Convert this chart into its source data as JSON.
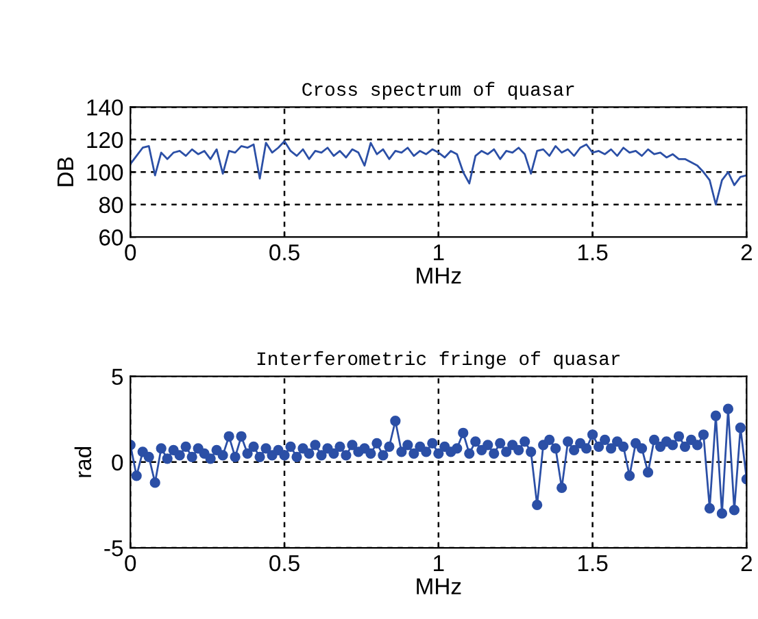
{
  "chart_data": [
    {
      "type": "line",
      "title": "Cross spectrum of quasar",
      "xlabel": "MHz",
      "ylabel": "DB",
      "xlim": [
        0,
        2
      ],
      "ylim": [
        60,
        140
      ],
      "xticks": [
        0,
        0.5,
        1,
        1.5,
        2
      ],
      "yticks": [
        60,
        80,
        100,
        120,
        140
      ],
      "grid": true,
      "marker": "none",
      "series": [
        {
          "color": "#2b4fa6",
          "x": [
            0,
            0.02,
            0.04,
            0.06,
            0.08,
            0.1,
            0.12,
            0.14,
            0.16,
            0.18,
            0.2,
            0.22,
            0.24,
            0.26,
            0.28,
            0.3,
            0.32,
            0.34,
            0.36,
            0.38,
            0.4,
            0.42,
            0.44,
            0.46,
            0.48,
            0.5,
            0.52,
            0.54,
            0.56,
            0.58,
            0.6,
            0.62,
            0.64,
            0.66,
            0.68,
            0.7,
            0.72,
            0.74,
            0.76,
            0.78,
            0.8,
            0.82,
            0.84,
            0.86,
            0.88,
            0.9,
            0.92,
            0.94,
            0.96,
            0.98,
            1,
            1.02,
            1.04,
            1.06,
            1.08,
            1.1,
            1.12,
            1.14,
            1.16,
            1.18,
            1.2,
            1.22,
            1.24,
            1.26,
            1.28,
            1.3,
            1.32,
            1.34,
            1.36,
            1.38,
            1.4,
            1.42,
            1.44,
            1.46,
            1.48,
            1.5,
            1.52,
            1.54,
            1.56,
            1.58,
            1.6,
            1.62,
            1.64,
            1.66,
            1.68,
            1.7,
            1.72,
            1.74,
            1.76,
            1.78,
            1.8,
            1.82,
            1.84,
            1.86,
            1.88,
            1.9,
            1.92,
            1.94,
            1.96,
            1.98,
            2
          ],
          "values": [
            105,
            110,
            115,
            116,
            98,
            112,
            108,
            112,
            113,
            110,
            114,
            111,
            113,
            108,
            114,
            99,
            113,
            112,
            116,
            115,
            117,
            96,
            118,
            112,
            115,
            119,
            113,
            110,
            114,
            108,
            113,
            112,
            115,
            110,
            113,
            109,
            114,
            112,
            104,
            118,
            111,
            114,
            108,
            113,
            112,
            115,
            110,
            113,
            111,
            114,
            112,
            109,
            113,
            111,
            100,
            93,
            110,
            113,
            111,
            114,
            108,
            113,
            112,
            115,
            111,
            99,
            113,
            114,
            110,
            116,
            112,
            114,
            110,
            115,
            117,
            112,
            113,
            111,
            114,
            110,
            115,
            112,
            113,
            110,
            114,
            111,
            112,
            109,
            111,
            108,
            108,
            106,
            104,
            100,
            95,
            80,
            95,
            100,
            92,
            97,
            98
          ]
        }
      ]
    },
    {
      "type": "line",
      "title": "Interferometric fringe of quasar",
      "xlabel": "MHz",
      "ylabel": "rad",
      "xlim": [
        0,
        2
      ],
      "ylim": [
        -5,
        5
      ],
      "xticks": [
        0,
        0.5,
        1,
        1.5,
        2
      ],
      "yticks": [
        -5,
        0,
        5
      ],
      "grid": true,
      "marker": "circle",
      "series": [
        {
          "color": "#2b4fa6",
          "x": [
            0,
            0.02,
            0.04,
            0.06,
            0.08,
            0.1,
            0.12,
            0.14,
            0.16,
            0.18,
            0.2,
            0.22,
            0.24,
            0.26,
            0.28,
            0.3,
            0.32,
            0.34,
            0.36,
            0.38,
            0.4,
            0.42,
            0.44,
            0.46,
            0.48,
            0.5,
            0.52,
            0.54,
            0.56,
            0.58,
            0.6,
            0.62,
            0.64,
            0.66,
            0.68,
            0.7,
            0.72,
            0.74,
            0.76,
            0.78,
            0.8,
            0.82,
            0.84,
            0.86,
            0.88,
            0.9,
            0.92,
            0.94,
            0.96,
            0.98,
            1,
            1.02,
            1.04,
            1.06,
            1.08,
            1.1,
            1.12,
            1.14,
            1.16,
            1.18,
            1.2,
            1.22,
            1.24,
            1.26,
            1.28,
            1.3,
            1.32,
            1.34,
            1.36,
            1.38,
            1.4,
            1.42,
            1.44,
            1.46,
            1.48,
            1.5,
            1.52,
            1.54,
            1.56,
            1.58,
            1.6,
            1.62,
            1.64,
            1.66,
            1.68,
            1.7,
            1.72,
            1.74,
            1.76,
            1.78,
            1.8,
            1.82,
            1.84,
            1.86,
            1.88,
            1.9,
            1.92,
            1.94,
            1.96,
            1.98,
            2
          ],
          "values": [
            1.0,
            -0.8,
            0.6,
            0.3,
            -1.2,
            0.8,
            0.2,
            0.7,
            0.4,
            0.9,
            0.3,
            0.8,
            0.5,
            0.2,
            0.7,
            0.4,
            1.5,
            0.3,
            1.5,
            0.5,
            0.9,
            0.3,
            0.8,
            0.4,
            0.7,
            0.4,
            0.9,
            0.3,
            0.8,
            0.5,
            1.0,
            0.4,
            0.8,
            0.5,
            0.9,
            0.4,
            1.0,
            0.6,
            0.8,
            0.5,
            1.1,
            0.4,
            0.9,
            2.4,
            0.6,
            1.0,
            0.5,
            0.9,
            0.6,
            1.1,
            0.5,
            0.9,
            0.6,
            0.8,
            1.7,
            0.5,
            1.2,
            0.7,
            1.0,
            0.5,
            1.1,
            0.6,
            1.0,
            0.7,
            1.2,
            0.6,
            -2.5,
            1.0,
            1.3,
            0.8,
            -1.5,
            1.2,
            0.7,
            1.1,
            0.8,
            1.6,
            0.9,
            1.3,
            0.8,
            1.2,
            0.9,
            -0.8,
            1.1,
            0.8,
            -0.6,
            1.3,
            0.9,
            1.2,
            1.0,
            1.5,
            0.9,
            1.3,
            1.0,
            1.6,
            -2.7,
            2.7,
            -3.0,
            3.1,
            -2.8,
            2.0,
            -1.0
          ]
        }
      ]
    }
  ]
}
